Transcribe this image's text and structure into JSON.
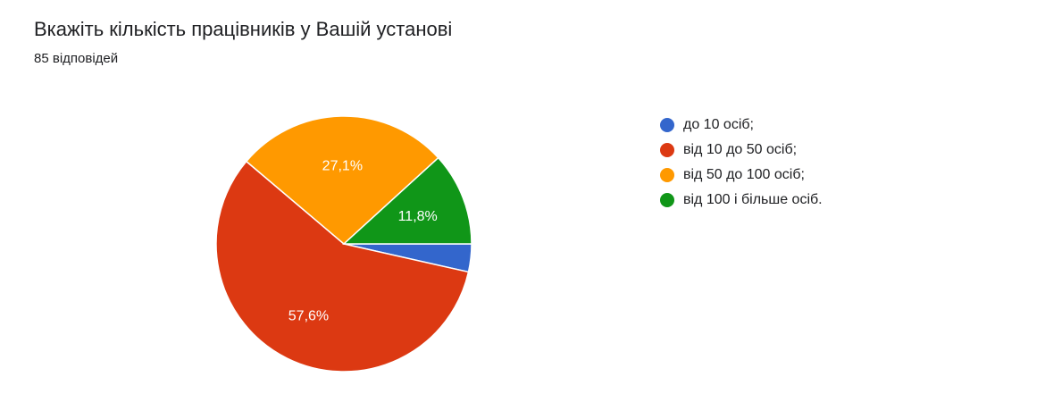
{
  "header": {
    "title": "Вкажіть кількість працівників у Вашій установі",
    "subtitle": "85 відповідей"
  },
  "chart_data": {
    "type": "pie",
    "title": "Вкажіть кількість працівників у Вашій установі",
    "total_responses": 85,
    "start": "3 o'clock, clockwise",
    "categories": [
      "до 10 осіб;",
      "від 10 до 50 осіб;",
      "від 50 до 100 осіб;",
      "від 100 і більше осіб."
    ],
    "values": [
      3,
      49,
      23,
      10
    ],
    "percents": [
      3.5,
      57.6,
      27.1,
      11.8
    ],
    "data_labels": [
      "",
      "57,6%",
      "27,1%",
      "11,8%"
    ],
    "colors": [
      "#3366cc",
      "#dc3912",
      "#ff9900",
      "#109618"
    ],
    "legend_position": "right"
  }
}
